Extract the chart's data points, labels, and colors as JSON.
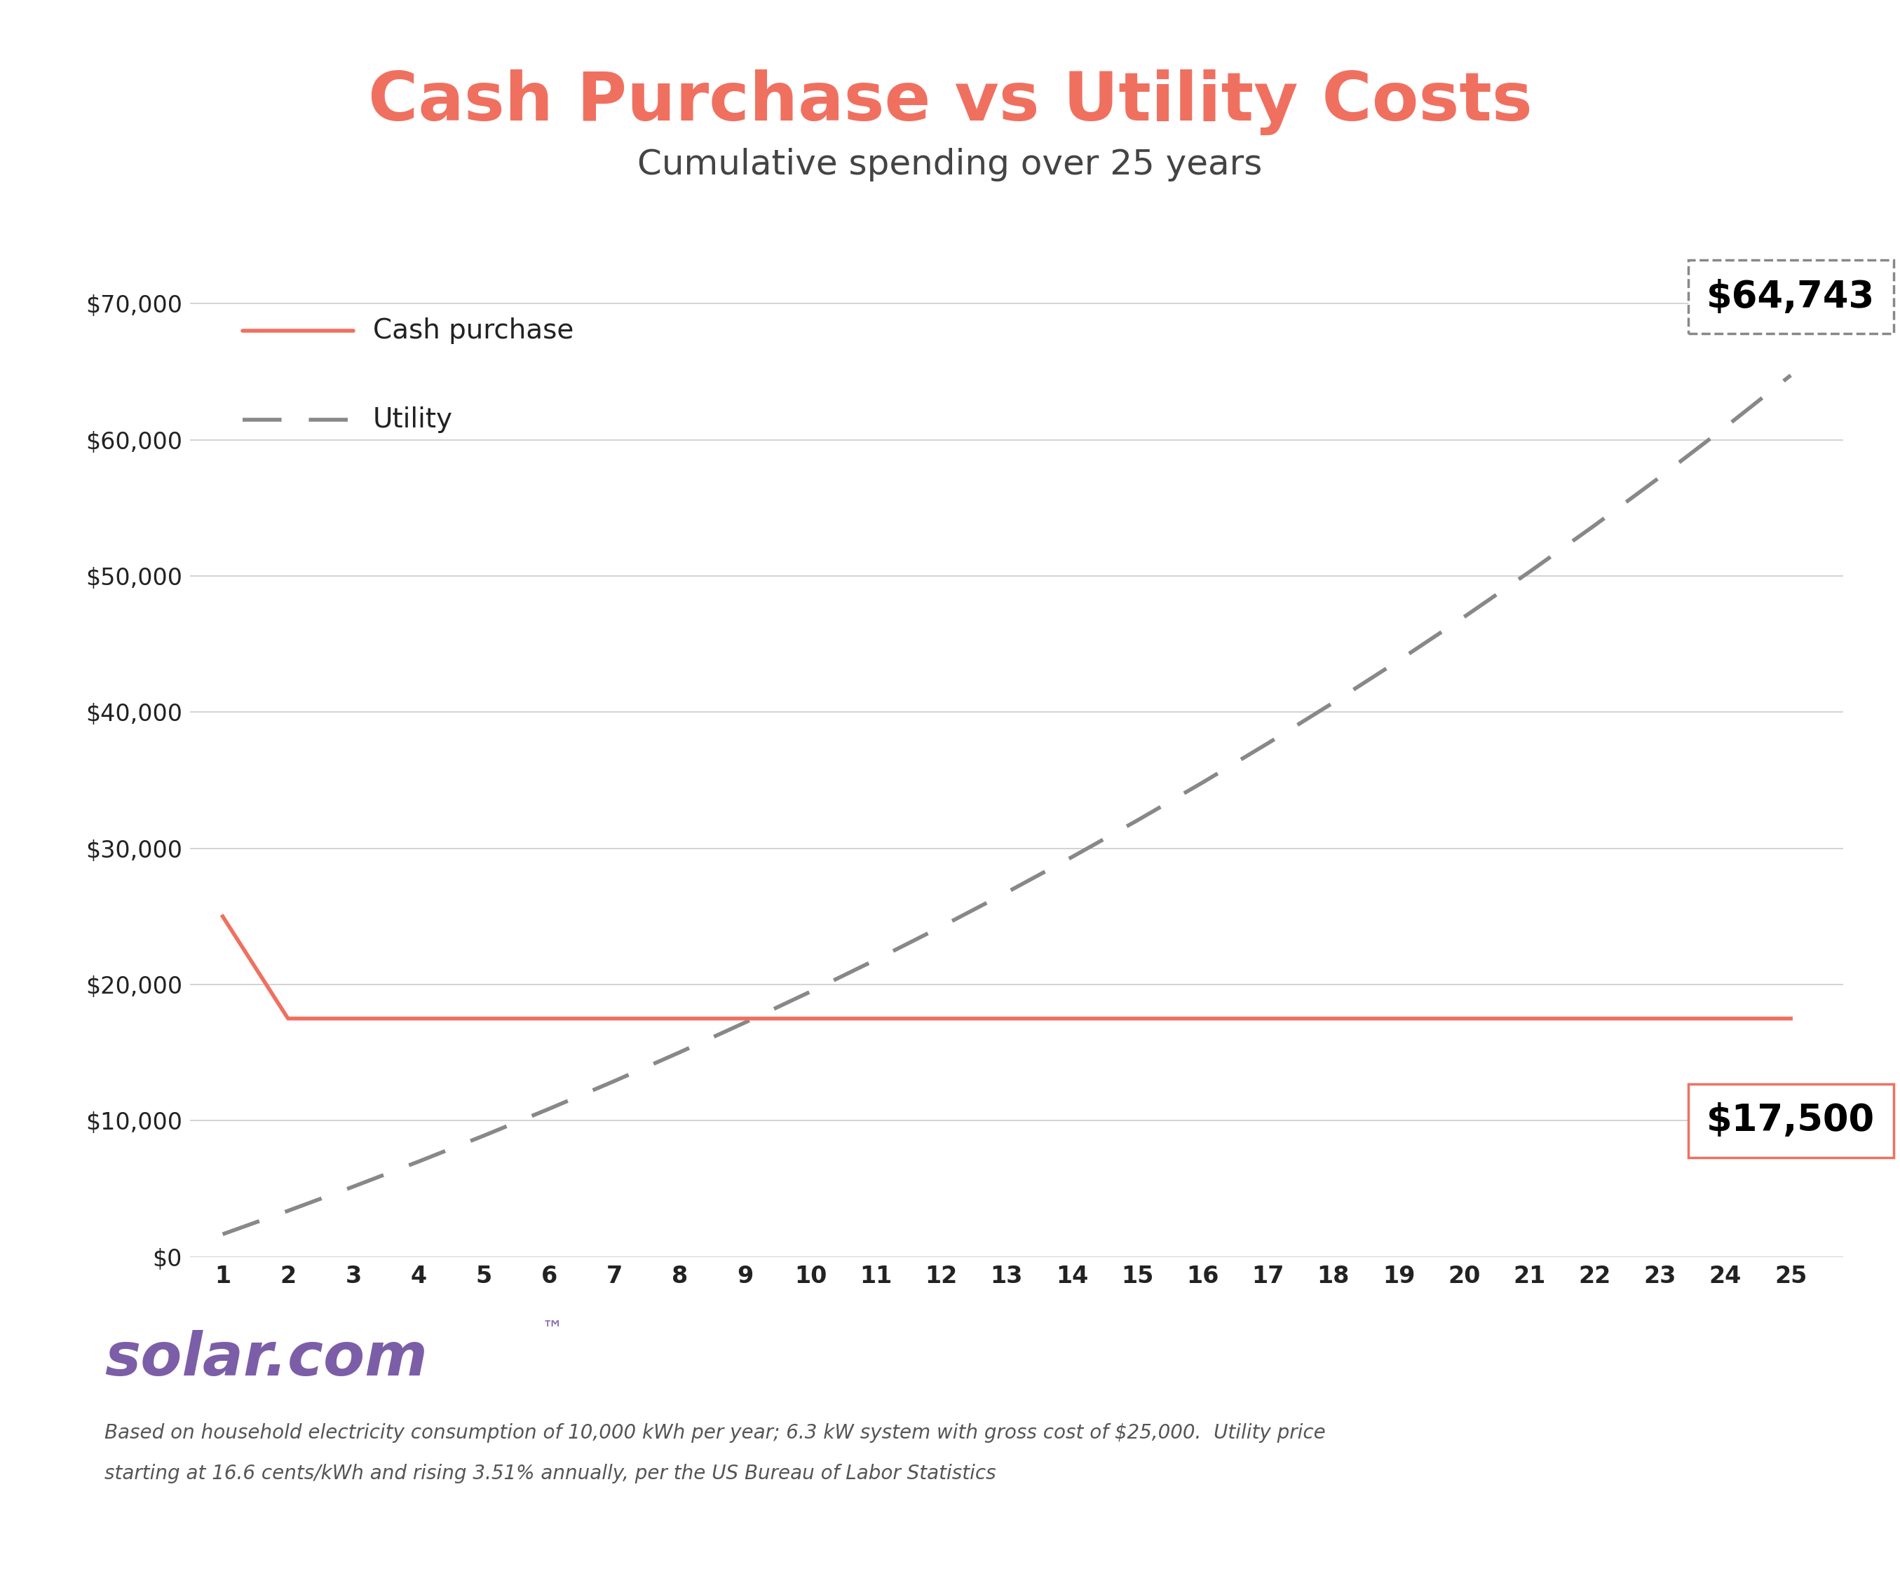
{
  "title": "Cash Purchase vs Utility Costs",
  "subtitle": "Cumulative spending over 25 years",
  "title_color": "#F07060",
  "subtitle_color": "#444444",
  "background_color": "#FFFFFF",
  "plot_bg_color": "#FFFFFF",
  "border_color": "#C8B4E8",
  "years": [
    1,
    2,
    3,
    4,
    5,
    6,
    7,
    8,
    9,
    10,
    11,
    12,
    13,
    14,
    15,
    16,
    17,
    18,
    19,
    20,
    21,
    22,
    23,
    24,
    25
  ],
  "cash_purchase": [
    25000,
    17500,
    17500,
    17500,
    17500,
    17500,
    17500,
    17500,
    17500,
    17500,
    17500,
    17500,
    17500,
    17500,
    17500,
    17500,
    17500,
    17500,
    17500,
    17500,
    17500,
    17500,
    17500,
    17500,
    17500
  ],
  "utility_final": 64743,
  "cash_final": 17500,
  "cash_color": "#F07060",
  "utility_color": "#888888",
  "ylim_min": 0,
  "ylim_max": 75000,
  "yticks": [
    0,
    10000,
    20000,
    30000,
    40000,
    50000,
    60000,
    70000
  ],
  "ytick_labels": [
    "$0",
    "$10,000",
    "$20,000",
    "$30,000",
    "$40,000",
    "$50,000",
    "$60,000",
    "$70,000"
  ],
  "footer_line1": "Based on household electricity consumption of 10,000 kWh per year; 6.3 kW system with gross cost of $25,000.  Utility price",
  "footer_line2": "starting at 16.6 cents/kWh and rising 3.51% annually, per the US Bureau of Labor Statistics",
  "solar_com_color": "#7B5EA7",
  "solar_com_dot_color": "#F07060",
  "bottom_bar_color": "#C8B4E8",
  "utility_rate": 0.0351,
  "utility_kwh_cost": 0.166,
  "utility_kwh_yr": 10000
}
